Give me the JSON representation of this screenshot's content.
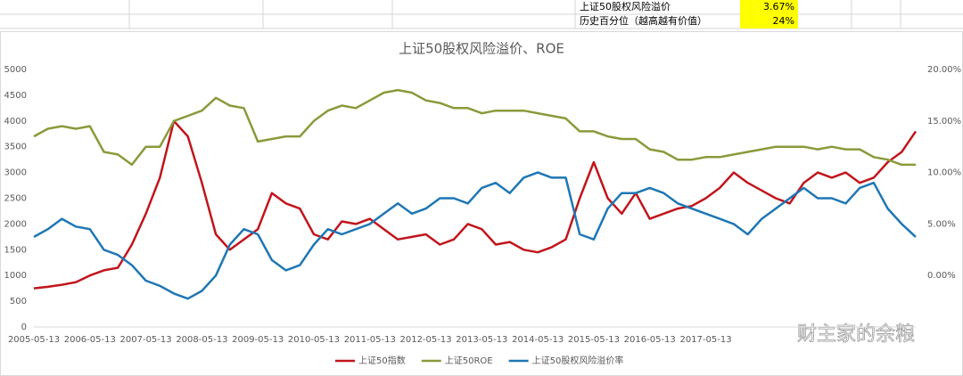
{
  "sheet": {
    "rows": [
      [
        "上证50股权风险溢价",
        "3.67%"
      ],
      [
        "历史百分位（越高越有价值）",
        "24%"
      ]
    ]
  },
  "chart_data": {
    "type": "line",
    "title": "上证50股权风险溢价、ROE",
    "x": [
      "2005-05-13",
      null,
      null,
      null,
      "2006-05-13",
      null,
      null,
      null,
      "2007-05-13",
      null,
      null,
      null,
      "2008-05-13",
      null,
      null,
      null,
      "2009-05-13",
      null,
      null,
      null,
      "2010-05-13",
      null,
      null,
      null,
      "2011-05-13",
      null,
      null,
      null,
      "2012-05-13",
      null,
      null,
      null,
      "2013-05-13",
      null,
      null,
      null,
      "2014-05-13",
      null,
      null,
      null,
      "2015-05-13",
      null,
      null,
      null,
      "2016-05-13",
      null,
      null,
      null,
      "2017-05-13",
      null,
      null,
      null,
      null,
      null,
      null,
      null,
      null,
      null,
      null,
      null,
      null,
      null,
      null,
      null
    ],
    "series": [
      {
        "name": "上证50指数",
        "color": "#c0161c",
        "axis": "y",
        "values": [
          750,
          780,
          820,
          870,
          1000,
          1100,
          1150,
          1600,
          2200,
          2900,
          4000,
          3700,
          2800,
          1800,
          1500,
          1700,
          1900,
          2600,
          2400,
          2300,
          1800,
          1700,
          2050,
          2000,
          2100,
          1900,
          1700,
          1750,
          1800,
          1600,
          1700,
          2000,
          1900,
          1600,
          1650,
          1500,
          1450,
          1550,
          1700,
          2500,
          3200,
          2500,
          2200,
          2600,
          2100,
          2200,
          2300,
          2350,
          2500,
          2700,
          3000,
          2800,
          2650,
          2500,
          2400,
          2800,
          3000,
          2900,
          3000,
          2800,
          2900,
          3200,
          3400,
          3800
        ]
      },
      {
        "name": "上证50ROE",
        "color": "#8a9a3b",
        "axis": "y2",
        "values": [
          13.5,
          14.25,
          14.5,
          14.25,
          14.5,
          12,
          11.75,
          10.75,
          12.5,
          12.5,
          15,
          15.5,
          16,
          17.25,
          16.5,
          16.25,
          13,
          13.25,
          13.5,
          13.5,
          15,
          16,
          16.5,
          16.25,
          17,
          17.75,
          18,
          17.75,
          17,
          16.75,
          16.25,
          16.25,
          15.75,
          16,
          16,
          16,
          15.75,
          15.5,
          15.25,
          14,
          14,
          13.5,
          13.25,
          13.25,
          12.25,
          12,
          11.25,
          11.25,
          11.5,
          11.5,
          11.75,
          12,
          12.25,
          12.5,
          12.5,
          12.5,
          12.25,
          12.5,
          12.25,
          12.25,
          11.5,
          11.25,
          10.75,
          10.75
        ]
      },
      {
        "name": "上证50股权风险溢价率",
        "color": "#1f77b4",
        "axis": "y2",
        "values": [
          3.75,
          4.5,
          5.5,
          4.75,
          4.5,
          2.5,
          2,
          1,
          -0.5,
          -1,
          -1.75,
          -2.25,
          -1.5,
          0,
          3,
          4.5,
          4,
          1.5,
          0.5,
          1,
          3,
          4.5,
          4,
          4.5,
          5,
          6,
          7,
          6,
          6.5,
          7.5,
          7.5,
          7,
          8.5,
          9,
          8,
          9.5,
          10,
          9.5,
          9.5,
          4,
          3.5,
          6.5,
          8,
          8,
          8.5,
          8,
          7,
          6.5,
          6,
          5.5,
          5,
          4,
          5.5,
          6.5,
          7.5,
          8.5,
          7.5,
          7.5,
          7,
          8.5,
          9,
          6.5,
          5,
          3.75
        ]
      }
    ],
    "ylim": [
      0,
      5000
    ],
    "yticks": [
      0,
      500,
      1000,
      1500,
      2000,
      2500,
      3000,
      3500,
      4000,
      4500,
      5000
    ],
    "y2lim": [
      -5,
      20
    ],
    "y2ticks": [
      {
        "value": 0,
        "label": "0.00%"
      },
      {
        "value": 5,
        "label": "5.00%"
      },
      {
        "value": 10,
        "label": "10.00%"
      },
      {
        "value": 15,
        "label": "15.00%"
      },
      {
        "value": 20,
        "label": "20.00%"
      }
    ],
    "grid": false,
    "legend": "bottom"
  },
  "watermark": "财主家的余粮"
}
